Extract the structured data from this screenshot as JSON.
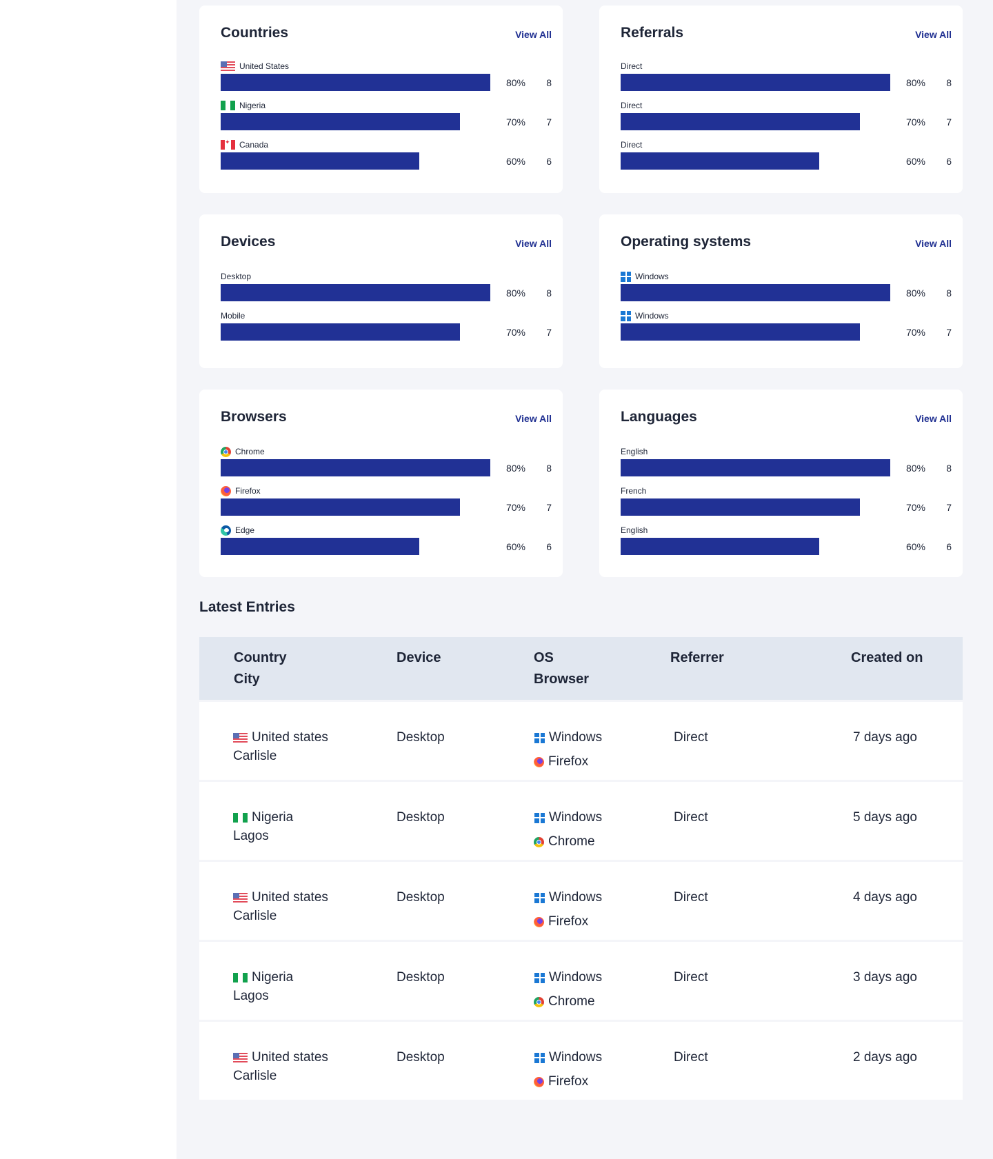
{
  "cards": {
    "countries": {
      "title": "Countries",
      "view_all": "View All",
      "rows": [
        {
          "label": "United States",
          "icon": "flag-us-icon",
          "percent": "80%",
          "count": "8",
          "fill": 1.0
        },
        {
          "label": "Nigeria",
          "icon": "flag-ng-icon",
          "percent": "70%",
          "count": "7",
          "fill": 0.887
        },
        {
          "label": "Canada",
          "icon": "flag-ca-icon",
          "percent": "60%",
          "count": "6",
          "fill": 0.737
        }
      ]
    },
    "referrals": {
      "title": "Referrals",
      "view_all": "View All",
      "rows": [
        {
          "label": "Direct",
          "percent": "80%",
          "count": "8",
          "fill": 1.0
        },
        {
          "label": "Direct",
          "percent": "70%",
          "count": "7",
          "fill": 0.887
        },
        {
          "label": "Direct",
          "percent": "60%",
          "count": "6",
          "fill": 0.737
        }
      ]
    },
    "devices": {
      "title": "Devices",
      "view_all": "View All",
      "rows": [
        {
          "label": "Desktop",
          "percent": "80%",
          "count": "8",
          "fill": 1.0
        },
        {
          "label": "Mobile",
          "percent": "70%",
          "count": "7",
          "fill": 0.887
        }
      ]
    },
    "operating_systems": {
      "title": "Operating systems",
      "view_all": "View All",
      "rows": [
        {
          "label": "Windows",
          "icon": "windows-icon",
          "percent": "80%",
          "count": "8",
          "fill": 1.0
        },
        {
          "label": "Windows",
          "icon": "windows-icon",
          "percent": "70%",
          "count": "7",
          "fill": 0.887
        }
      ]
    },
    "browsers": {
      "title": "Browsers",
      "view_all": "View All",
      "rows": [
        {
          "label": "Chrome",
          "icon": "chrome-icon",
          "percent": "80%",
          "count": "8",
          "fill": 1.0
        },
        {
          "label": "Firefox",
          "icon": "firefox-icon",
          "percent": "70%",
          "count": "7",
          "fill": 0.887
        },
        {
          "label": "Edge",
          "icon": "edge-icon",
          "percent": "60%",
          "count": "6",
          "fill": 0.737
        }
      ]
    },
    "languages": {
      "title": "Languages",
      "view_all": "View All",
      "rows": [
        {
          "label": "English",
          "percent": "80%",
          "count": "8",
          "fill": 1.0
        },
        {
          "label": "French",
          "percent": "70%",
          "count": "7",
          "fill": 0.887
        },
        {
          "label": "English",
          "percent": "60%",
          "count": "6",
          "fill": 0.737
        }
      ]
    }
  },
  "latest_entries": {
    "title": "Latest Entries",
    "headers": {
      "country": "Country",
      "city": "City",
      "device": "Device",
      "os": "OS",
      "browser": "Browser",
      "referrer": "Referrer",
      "created_on": "Created on"
    },
    "rows": [
      {
        "country": "United states",
        "flag": "flag-us-icon",
        "city": "Carlisle",
        "device": "Desktop",
        "os": "Windows",
        "browser": "Firefox",
        "browser_icon": "firefox-icon",
        "referrer": "Direct",
        "created_on": "7 days ago"
      },
      {
        "country": "Nigeria",
        "flag": "flag-ng-icon",
        "city": "Lagos",
        "device": "Desktop",
        "os": "Windows",
        "browser": "Chrome",
        "browser_icon": "chrome-icon",
        "referrer": "Direct",
        "created_on": "5 days ago"
      },
      {
        "country": "United states",
        "flag": "flag-us-icon",
        "city": "Carlisle",
        "device": "Desktop",
        "os": "Windows",
        "browser": "Firefox",
        "browser_icon": "firefox-icon",
        "referrer": "Direct",
        "created_on": "4 days ago"
      },
      {
        "country": "Nigeria",
        "flag": "flag-ng-icon",
        "city": "Lagos",
        "device": "Desktop",
        "os": "Windows",
        "browser": "Chrome",
        "browser_icon": "chrome-icon",
        "referrer": "Direct",
        "created_on": "3 days ago"
      },
      {
        "country": "United states",
        "flag": "flag-us-icon",
        "city": "Carlisle",
        "device": "Desktop",
        "os": "Windows",
        "browser": "Firefox",
        "browser_icon": "firefox-icon",
        "referrer": "Direct",
        "created_on": "2 days ago"
      }
    ]
  },
  "colors": {
    "bar": "#213195",
    "accent": "#1f2f91",
    "page_bg": "#f4f5f9",
    "table_header_bg": "#e1e7f0"
  }
}
